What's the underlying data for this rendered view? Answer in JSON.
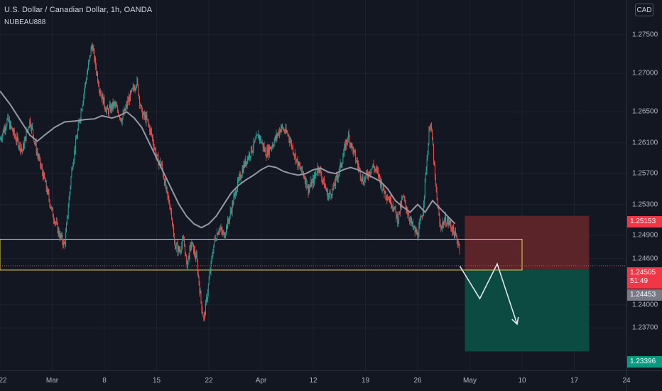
{
  "header": {
    "title": "U.S. Dollar / Canadian Dollar, 1h, OANDA",
    "author": "NUBEAU888",
    "currency_button": "CAD"
  },
  "price_axis": {
    "ticks": [
      "1.27500",
      "1.27000",
      "1.26500",
      "1.26100",
      "1.25700",
      "1.25300",
      "1.24900",
      "1.24600",
      "1.24000",
      "1.23700"
    ]
  },
  "time_axis": {
    "ticks": [
      "22",
      "Mar",
      "8",
      "15",
      "22",
      "Apr",
      "12",
      "19",
      "26",
      "May",
      "10",
      "17",
      "24"
    ]
  },
  "price_labels": {
    "stop": "1.25153",
    "current_price": "1.24505",
    "countdown": "51:49",
    "entry": "1.24453",
    "target": "1.23396"
  },
  "colors": {
    "background": "#131722",
    "candle_up": "#26a69a",
    "candle_down": "#ef5350",
    "moving_average": "#9598a1",
    "zone_border": "#e8d94a",
    "stop_area": "#5b2428",
    "target_area": "#0c4b42",
    "projection_arrow": "#e0e3eb"
  },
  "chart_data": {
    "type": "candlestick",
    "symbol": "U.S. Dollar / Canadian Dollar",
    "timeframe": "1h",
    "source": "OANDA",
    "ylim": [
      1.2315,
      1.2795
    ],
    "price_path": [
      [
        0,
        1.2614
      ],
      [
        3,
        1.264
      ],
      [
        6,
        1.2618
      ],
      [
        9,
        1.26
      ],
      [
        12,
        1.264
      ],
      [
        15,
        1.2596
      ],
      [
        18,
        1.256
      ],
      [
        21,
        1.252
      ],
      [
        24,
        1.249
      ],
      [
        26,
        1.2477
      ],
      [
        29,
        1.258
      ],
      [
        32,
        1.264
      ],
      [
        35,
        1.27
      ],
      [
        37,
        1.2738
      ],
      [
        40,
        1.268
      ],
      [
        43,
        1.265
      ],
      [
        46,
        1.266
      ],
      [
        49,
        1.264
      ],
      [
        52,
        1.2668
      ],
      [
        55,
        1.269
      ],
      [
        57,
        1.2648
      ],
      [
        59,
        1.264
      ],
      [
        61,
        1.262
      ],
      [
        63,
        1.259
      ],
      [
        65,
        1.258
      ],
      [
        67,
        1.2545
      ],
      [
        69,
        1.252
      ],
      [
        70,
        1.248
      ],
      [
        72,
        1.247
      ],
      [
        74,
        1.2484
      ],
      [
        75,
        1.245
      ],
      [
        77,
        1.248
      ],
      [
        79,
        1.246
      ],
      [
        81,
        1.24
      ],
      [
        82,
        1.238
      ],
      [
        84,
        1.243
      ],
      [
        86,
        1.248
      ],
      [
        88,
        1.25
      ],
      [
        90,
        1.249
      ],
      [
        92,
        1.251
      ],
      [
        95,
        1.255
      ],
      [
        98,
        1.258
      ],
      [
        101,
        1.26
      ],
      [
        104,
        1.262
      ],
      [
        107,
        1.2596
      ],
      [
        110,
        1.261
      ],
      [
        113,
        1.263
      ],
      [
        116,
        1.262
      ],
      [
        118,
        1.26
      ],
      [
        120,
        1.258
      ],
      [
        122,
        1.257
      ],
      [
        124,
        1.255
      ],
      [
        126,
        1.256
      ],
      [
        128,
        1.258
      ],
      [
        130,
        1.256
      ],
      [
        132,
        1.254
      ],
      [
        134,
        1.255
      ],
      [
        137,
        1.258
      ],
      [
        140,
        1.262
      ],
      [
        142,
        1.26
      ],
      [
        144,
        1.258
      ],
      [
        146,
        1.256
      ],
      [
        148,
        1.257
      ],
      [
        150,
        1.258
      ],
      [
        152,
        1.257
      ],
      [
        154,
        1.255
      ],
      [
        156,
        1.254
      ],
      [
        158,
        1.253
      ],
      [
        160,
        1.251
      ],
      [
        162,
        1.254
      ],
      [
        164,
        1.252
      ],
      [
        166,
        1.25
      ],
      [
        168,
        1.249
      ],
      [
        170,
        1.252
      ],
      [
        172,
        1.26
      ],
      [
        173,
        1.264
      ],
      [
        174,
        1.261
      ],
      [
        175,
        1.256
      ],
      [
        177,
        1.25
      ],
      [
        179,
        1.251
      ],
      [
        181,
        1.2505
      ],
      [
        183,
        1.249
      ],
      [
        185,
        1.2475
      ]
    ],
    "moving_average": [
      [
        0,
        1.2677
      ],
      [
        4,
        1.266
      ],
      [
        8,
        1.264
      ],
      [
        12,
        1.262
      ],
      [
        15,
        1.2612
      ],
      [
        18,
        1.262
      ],
      [
        22,
        1.263
      ],
      [
        26,
        1.2637
      ],
      [
        30,
        1.2638
      ],
      [
        34,
        1.264
      ],
      [
        38,
        1.2641
      ],
      [
        41,
        1.2645
      ],
      [
        45,
        1.2642
      ],
      [
        48,
        1.2645
      ],
      [
        51,
        1.265
      ],
      [
        54,
        1.2642
      ],
      [
        57,
        1.263
      ],
      [
        60,
        1.261
      ],
      [
        63,
        1.259
      ],
      [
        66,
        1.257
      ],
      [
        69,
        1.255
      ],
      [
        72,
        1.253
      ],
      [
        75,
        1.2515
      ],
      [
        78,
        1.2505
      ],
      [
        81,
        1.25
      ],
      [
        84,
        1.2505
      ],
      [
        87,
        1.2515
      ],
      [
        90,
        1.253
      ],
      [
        93,
        1.2545
      ],
      [
        96,
        1.2555
      ],
      [
        99,
        1.2562
      ],
      [
        102,
        1.2568
      ],
      [
        105,
        1.2575
      ],
      [
        108,
        1.258
      ],
      [
        111,
        1.2578
      ],
      [
        114,
        1.2573
      ],
      [
        117,
        1.257
      ],
      [
        120,
        1.2568
      ],
      [
        123,
        1.257
      ],
      [
        126,
        1.2575
      ],
      [
        129,
        1.2577
      ],
      [
        132,
        1.2572
      ],
      [
        135,
        1.257
      ],
      [
        138,
        1.2575
      ],
      [
        141,
        1.2578
      ],
      [
        144,
        1.2575
      ],
      [
        147,
        1.257
      ],
      [
        150,
        1.2565
      ],
      [
        153,
        1.256
      ],
      [
        156,
        1.255
      ],
      [
        159,
        1.2535
      ],
      [
        162,
        1.2527
      ],
      [
        165,
        1.252
      ],
      [
        168,
        1.253
      ],
      [
        171,
        1.252
      ],
      [
        174,
        1.2535
      ],
      [
        177,
        1.2525
      ],
      [
        180,
        1.2515
      ],
      [
        183,
        1.2505
      ]
    ],
    "support_zone": {
      "x_start": 0,
      "x_end": 210,
      "low": 1.2445,
      "high": 1.2485
    },
    "position": {
      "entry": 1.24453,
      "stop": 1.25153,
      "target": 1.23396,
      "x_start": 187,
      "x_end": 237
    },
    "projection_path": [
      [
        185,
        1.245
      ],
      [
        193,
        1.2408
      ],
      [
        200,
        1.2453
      ],
      [
        208,
        1.2375
      ]
    ]
  }
}
